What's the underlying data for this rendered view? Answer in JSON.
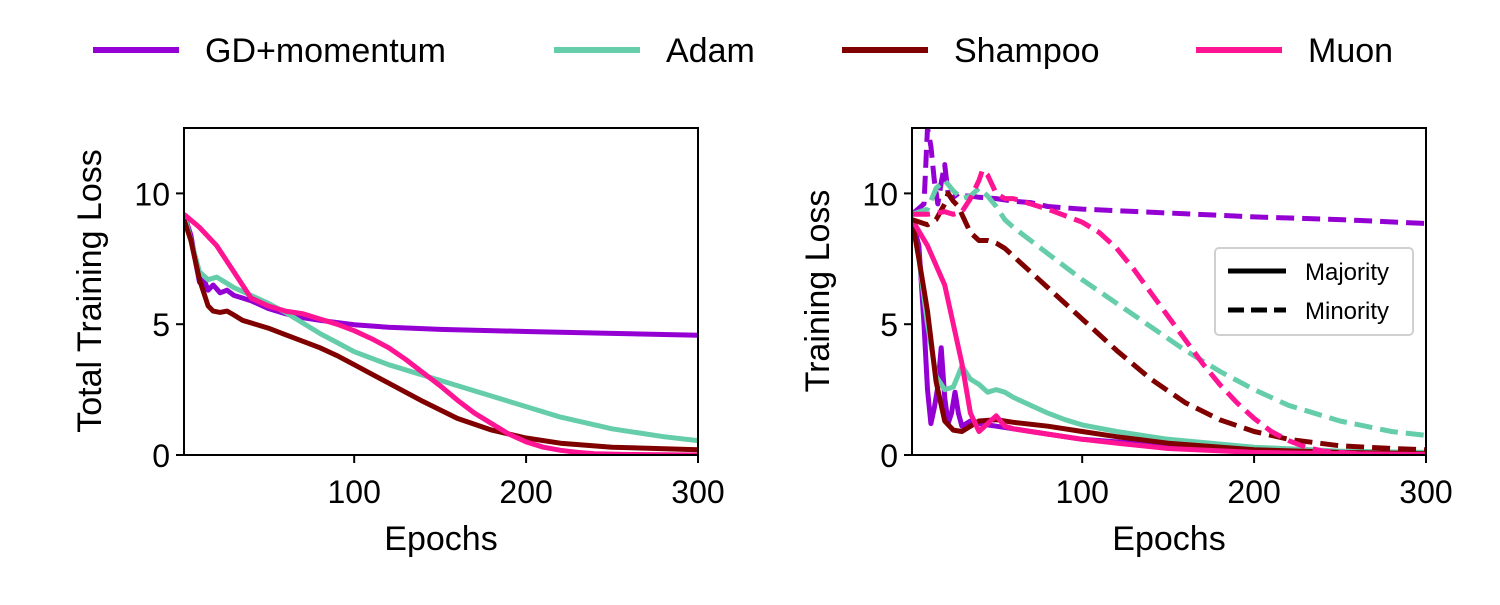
{
  "legend": [
    {
      "label": "GD+momentum",
      "color": "#9400D3"
    },
    {
      "label": "Adam",
      "color": "#66CDAA"
    },
    {
      "label": "Shampoo",
      "color": "#800000"
    },
    {
      "label": "Muon",
      "color": "#FF1493"
    }
  ],
  "style_legend": [
    {
      "label": "Majority",
      "dash": "solid"
    },
    {
      "label": "Minority",
      "dash": "dashed"
    }
  ],
  "chart_data": [
    {
      "type": "line",
      "title": "",
      "xlabel": "Epochs",
      "ylabel": "Total Training Loss",
      "xlim": [
        1,
        300
      ],
      "ylim": [
        0,
        12.5
      ],
      "xticks": [
        100,
        200,
        300
      ],
      "yticks": [
        0,
        5,
        10
      ],
      "grid": false,
      "series": [
        {
          "name": "GD+momentum",
          "color": "#9400D3",
          "style": "solid",
          "x": [
            1,
            5,
            8,
            10,
            12,
            15,
            18,
            22,
            26,
            30,
            35,
            40,
            50,
            60,
            70,
            80,
            100,
            120,
            150,
            200,
            250,
            300
          ],
          "y": [
            9.2,
            8.4,
            7.3,
            6.6,
            6.8,
            6.3,
            6.5,
            6.2,
            6.3,
            6.1,
            6.0,
            5.9,
            5.6,
            5.4,
            5.25,
            5.15,
            4.98,
            4.88,
            4.8,
            4.72,
            4.65,
            4.58
          ]
        },
        {
          "name": "Adam",
          "color": "#66CDAA",
          "style": "solid",
          "x": [
            1,
            5,
            10,
            15,
            20,
            25,
            30,
            40,
            50,
            60,
            70,
            80,
            90,
            100,
            120,
            150,
            180,
            200,
            220,
            250,
            280,
            300
          ],
          "y": [
            9.2,
            8.2,
            7.0,
            6.7,
            6.8,
            6.6,
            6.4,
            6.1,
            5.8,
            5.45,
            5.05,
            4.65,
            4.3,
            3.95,
            3.45,
            2.85,
            2.25,
            1.85,
            1.45,
            1.0,
            0.7,
            0.55
          ]
        },
        {
          "name": "Shampoo",
          "color": "#800000",
          "style": "solid",
          "x": [
            1,
            5,
            10,
            15,
            18,
            22,
            26,
            30,
            35,
            40,
            50,
            60,
            70,
            80,
            90,
            100,
            110,
            120,
            140,
            160,
            180,
            200,
            220,
            250,
            300
          ],
          "y": [
            9.0,
            8.2,
            6.7,
            5.7,
            5.5,
            5.45,
            5.5,
            5.35,
            5.15,
            5.05,
            4.85,
            4.6,
            4.35,
            4.1,
            3.8,
            3.45,
            3.1,
            2.75,
            2.05,
            1.4,
            0.95,
            0.65,
            0.45,
            0.3,
            0.2
          ]
        },
        {
          "name": "Muon",
          "color": "#FF1493",
          "style": "solid",
          "x": [
            1,
            10,
            20,
            30,
            40,
            50,
            60,
            70,
            80,
            90,
            100,
            110,
            120,
            130,
            140,
            150,
            160,
            170,
            180,
            190,
            200,
            210,
            220,
            230,
            240,
            260,
            300
          ],
          "y": [
            9.2,
            8.7,
            8.0,
            7.0,
            6.0,
            5.7,
            5.5,
            5.4,
            5.2,
            5.0,
            4.75,
            4.45,
            4.1,
            3.65,
            3.15,
            2.65,
            2.1,
            1.6,
            1.2,
            0.8,
            0.5,
            0.3,
            0.18,
            0.1,
            0.05,
            0.02,
            0.0
          ]
        }
      ]
    },
    {
      "type": "line",
      "title": "",
      "xlabel": "Epochs",
      "ylabel": "Training Loss",
      "xlim": [
        1,
        300
      ],
      "ylim": [
        0,
        12.5
      ],
      "xticks": [
        100,
        200,
        300
      ],
      "yticks": [
        0,
        5,
        10
      ],
      "grid": false,
      "legend_position": "center-right",
      "series": [
        {
          "name": "GD+momentum (Majority)",
          "color": "#9400D3",
          "style": "solid",
          "x": [
            1,
            5,
            8,
            10,
            12,
            14,
            16,
            18,
            20,
            22,
            24,
            26,
            28,
            30,
            35,
            40,
            50,
            60,
            80,
            100,
            150,
            200,
            250,
            300
          ],
          "y": [
            9.0,
            8.0,
            5.0,
            2.5,
            1.2,
            1.8,
            2.6,
            4.1,
            2.2,
            1.2,
            1.6,
            2.4,
            1.6,
            1.1,
            1.3,
            1.2,
            1.1,
            1.0,
            0.8,
            0.6,
            0.35,
            0.2,
            0.1,
            0.05
          ]
        },
        {
          "name": "Adam (Majority)",
          "color": "#66CDAA",
          "style": "solid",
          "x": [
            1,
            5,
            10,
            15,
            20,
            25,
            30,
            35,
            40,
            45,
            50,
            55,
            60,
            70,
            80,
            90,
            100,
            120,
            150,
            200,
            250,
            300
          ],
          "y": [
            9.0,
            7.5,
            5.0,
            3.0,
            2.5,
            2.6,
            3.4,
            2.9,
            2.7,
            2.4,
            2.5,
            2.4,
            2.2,
            1.9,
            1.6,
            1.35,
            1.15,
            0.9,
            0.6,
            0.3,
            0.15,
            0.1
          ]
        },
        {
          "name": "Shampoo (Majority)",
          "color": "#800000",
          "style": "solid",
          "x": [
            1,
            5,
            10,
            15,
            20,
            25,
            30,
            35,
            40,
            50,
            60,
            80,
            100,
            120,
            150,
            200,
            250,
            300
          ],
          "y": [
            9.0,
            7.5,
            5.5,
            2.8,
            1.3,
            0.95,
            0.9,
            1.1,
            1.3,
            1.35,
            1.25,
            1.1,
            0.9,
            0.7,
            0.45,
            0.2,
            0.1,
            0.05
          ]
        },
        {
          "name": "Muon (Majority)",
          "color": "#FF1493",
          "style": "solid",
          "x": [
            1,
            10,
            20,
            30,
            35,
            40,
            45,
            50,
            55,
            60,
            70,
            80,
            100,
            120,
            150,
            200,
            250,
            300
          ],
          "y": [
            9.0,
            8.0,
            6.5,
            3.5,
            1.6,
            0.9,
            1.2,
            1.5,
            1.1,
            1.0,
            0.9,
            0.8,
            0.6,
            0.45,
            0.25,
            0.1,
            0.05,
            0.02
          ]
        },
        {
          "name": "GD+momentum (Minority)",
          "color": "#9400D3",
          "style": "dashed",
          "x": [
            1,
            8,
            10,
            12,
            14,
            16,
            18,
            20,
            22,
            24,
            26,
            28,
            30,
            35,
            40,
            50,
            60,
            70,
            80,
            100,
            150,
            200,
            250,
            300
          ],
          "y": [
            9.2,
            9.6,
            12.5,
            11.8,
            10.5,
            9.6,
            10.4,
            11.1,
            10.0,
            9.8,
            9.9,
            10.0,
            9.9,
            9.9,
            9.85,
            9.8,
            9.7,
            9.65,
            9.5,
            9.4,
            9.25,
            9.1,
            9.0,
            8.85
          ]
        },
        {
          "name": "Adam (Minority)",
          "color": "#66CDAA",
          "style": "dashed",
          "x": [
            1,
            10,
            15,
            20,
            25,
            30,
            35,
            40,
            45,
            50,
            55,
            60,
            70,
            80,
            90,
            100,
            120,
            140,
            160,
            180,
            200,
            220,
            250,
            280,
            300
          ],
          "y": [
            9.2,
            9.4,
            10.2,
            10.5,
            10.1,
            9.8,
            9.9,
            10.2,
            9.9,
            9.5,
            9.0,
            8.7,
            8.2,
            7.7,
            7.2,
            6.7,
            5.8,
            4.9,
            4.0,
            3.2,
            2.5,
            1.9,
            1.3,
            0.9,
            0.75
          ]
        },
        {
          "name": "Shampoo (Minority)",
          "color": "#800000",
          "style": "dashed",
          "x": [
            1,
            10,
            15,
            20,
            22,
            25,
            28,
            30,
            35,
            40,
            45,
            50,
            55,
            60,
            70,
            80,
            100,
            120,
            140,
            160,
            180,
            200,
            220,
            250,
            280,
            300
          ],
          "y": [
            9.0,
            8.8,
            9.0,
            9.6,
            10.0,
            9.7,
            9.5,
            9.2,
            8.5,
            8.2,
            8.2,
            8.1,
            7.9,
            7.6,
            7.0,
            6.4,
            5.2,
            4.0,
            2.9,
            2.0,
            1.35,
            0.9,
            0.6,
            0.35,
            0.25,
            0.2
          ]
        },
        {
          "name": "Muon (Minority)",
          "color": "#FF1493",
          "style": "dashed",
          "x": [
            1,
            10,
            20,
            25,
            30,
            35,
            40,
            42,
            45,
            50,
            55,
            60,
            70,
            80,
            90,
            100,
            110,
            120,
            130,
            140,
            150,
            160,
            170,
            180,
            190,
            200,
            210,
            220,
            230,
            240,
            260,
            300
          ],
          "y": [
            9.2,
            9.2,
            9.3,
            9.2,
            9.3,
            9.8,
            10.5,
            10.9,
            10.7,
            10.0,
            9.8,
            9.8,
            9.6,
            9.4,
            9.15,
            8.9,
            8.5,
            7.9,
            7.1,
            6.2,
            5.3,
            4.4,
            3.5,
            2.7,
            2.0,
            1.4,
            0.9,
            0.55,
            0.3,
            0.15,
            0.05,
            0.0
          ]
        }
      ]
    }
  ]
}
